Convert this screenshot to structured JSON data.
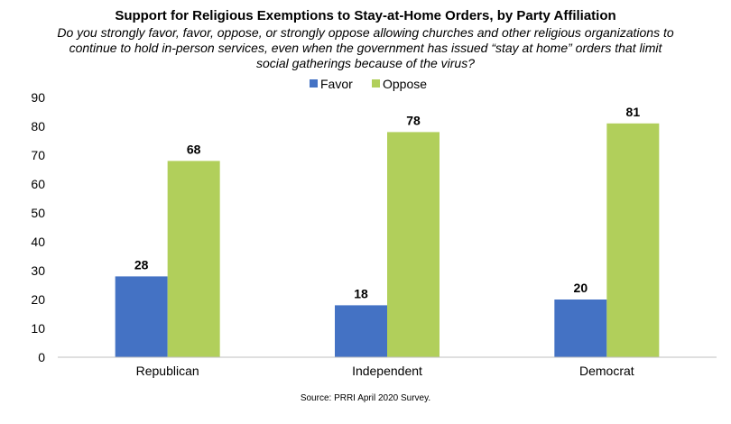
{
  "chart_data": {
    "type": "bar",
    "title": "Support for Religious Exemptions to Stay-at-Home Orders, by Party Affiliation",
    "subtitle": "Do you strongly favor, favor, oppose, or strongly oppose allowing churches and other religious organizations to continue to hold in-person services, even when the government has issued “stay at home” orders that limit social gatherings because of the virus?",
    "categories": [
      "Republican",
      "Independent",
      "Democrat"
    ],
    "series": [
      {
        "name": "Favor",
        "values": [
          28,
          18,
          20
        ],
        "color": "#4472C4"
      },
      {
        "name": "Oppose",
        "values": [
          68,
          78,
          81
        ],
        "color": "#B1CF5B"
      }
    ],
    "ylim": [
      0,
      90
    ],
    "yticks": [
      0,
      10,
      20,
      30,
      40,
      50,
      60,
      70,
      80,
      90
    ],
    "xlabel": "",
    "ylabel": "",
    "grid": false,
    "legend": "top-center",
    "source": "Source: PRRI April 2020 Survey."
  }
}
